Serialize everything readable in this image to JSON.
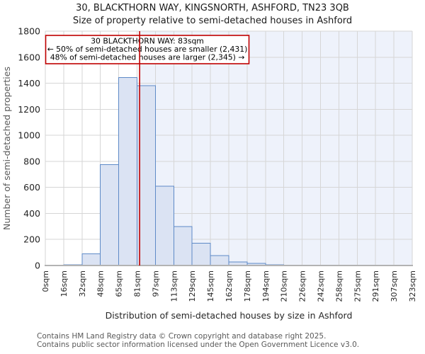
{
  "page": {
    "title_line1": "30, BLACKTHORN WAY, KINGSNORTH, ASHFORD, TN23 3QB",
    "title_line2": "Size of property relative to semi-detached houses in Ashford",
    "footer_line1": "Contains HM Land Registry data © Crown copyright and database right 2025.",
    "footer_line2": "Contains public sector information licensed under the Open Government Licence v3.0."
  },
  "chart_data": {
    "type": "bar",
    "title": "30, BLACKTHORN WAY, KINGSNORTH, ASHFORD, TN23 3QB",
    "subtitle": "Size of property relative to semi-detached houses in Ashford",
    "xlabel": "Distribution of semi-detached houses by size in Ashford",
    "ylabel": "Number of semi-detached properties",
    "categories": [
      "0sqm",
      "16sqm",
      "32sqm",
      "48sqm",
      "65sqm",
      "81sqm",
      "97sqm",
      "113sqm",
      "129sqm",
      "145sqm",
      "162sqm",
      "178sqm",
      "194sqm",
      "210sqm",
      "226sqm",
      "242sqm",
      "258sqm",
      "275sqm",
      "291sqm",
      "307sqm",
      "323sqm"
    ],
    "bin_start_sqm": [
      0,
      16,
      32,
      48,
      65,
      81,
      97,
      113,
      129,
      145,
      162,
      178,
      194,
      210,
      226,
      242,
      258,
      275,
      291,
      307
    ],
    "values": [
      0,
      5,
      90,
      775,
      1445,
      1380,
      610,
      300,
      170,
      75,
      27,
      15,
      5,
      4,
      3,
      3,
      2,
      2,
      0,
      0
    ],
    "ylim": [
      0,
      1800
    ],
    "ytick_step": 200,
    "grid": true,
    "legend": "none",
    "marker": {
      "sqm": 83,
      "x_axis_max_sqm": 323
    },
    "annotation": {
      "line1": "30 BLACKTHORN WAY: 83sqm",
      "line2": "← 50% of semi-detached houses are smaller (2,431)",
      "line3": "48% of semi-detached houses are larger (2,345) →"
    },
    "colors": {
      "bar_fill": "#dbe3f3",
      "bar_edge": "#5e8ac7",
      "shaded_region": "#eef2fb",
      "gridline": "#d6d6d6",
      "axis_line": "#b3b3b3",
      "marker_line": "#c00000",
      "annotation_border": "#c00000",
      "annotation_bg": "#ffffff",
      "tick_text": "#262626",
      "muted_text": "#595959"
    }
  }
}
